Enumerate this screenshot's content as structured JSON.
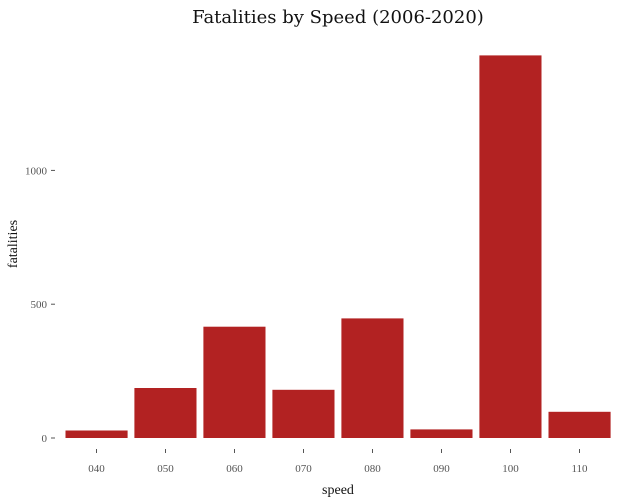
{
  "chart_data": {
    "type": "bar",
    "title": "Fatalities by Speed (2006-2020)",
    "xlabel": "speed",
    "ylabel": "fatalities",
    "categories": [
      "040",
      "050",
      "060",
      "070",
      "080",
      "090",
      "100",
      "110"
    ],
    "values": [
      28,
      187,
      416,
      180,
      447,
      32,
      1430,
      98
    ],
    "ylim": [
      0,
      1450
    ],
    "yticks": [
      0,
      500,
      1000
    ],
    "ytick_labels": [
      "0",
      "500",
      "1000"
    ],
    "grid": false,
    "bar_color": "#b22222"
  }
}
